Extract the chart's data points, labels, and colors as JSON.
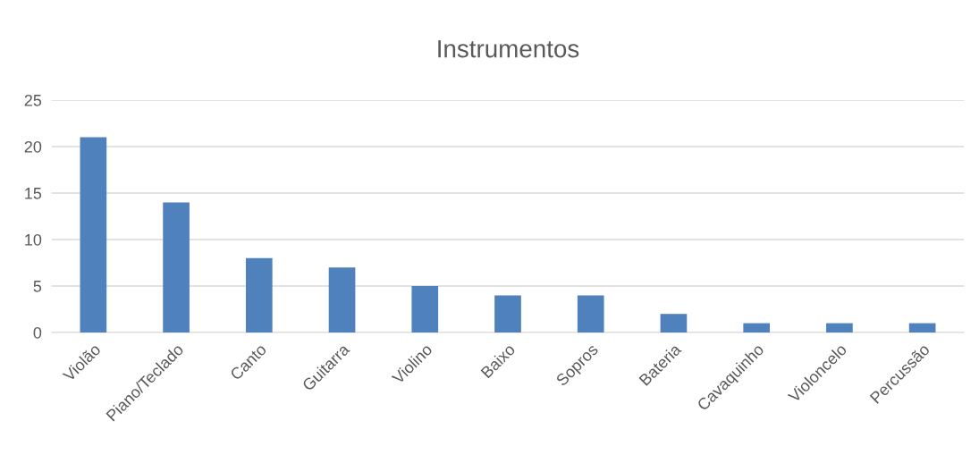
{
  "chart_data": {
    "type": "bar",
    "title": "Instrumentos",
    "categories": [
      "Violão",
      "Piano/Teclado",
      "Canto",
      "Guitarra",
      "Violino",
      "Baixo",
      "Sopros",
      "Bateria",
      "Cavaquinho",
      "Violoncelo",
      "Percussão"
    ],
    "values": [
      21,
      14,
      8,
      7,
      5,
      4,
      4,
      2,
      1,
      1,
      1
    ],
    "color": "#4f81bd",
    "ylim": [
      0,
      25
    ],
    "yticks": [
      0,
      5,
      10,
      15,
      20,
      25
    ],
    "grid": "y",
    "legend": false
  }
}
